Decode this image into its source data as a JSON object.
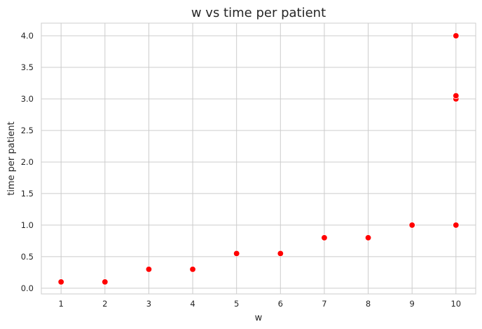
{
  "chart_data": {
    "type": "scatter",
    "title": "w vs time per patient",
    "xlabel": "w",
    "ylabel": "time per patient",
    "x_ticks": [
      1,
      2,
      3,
      4,
      5,
      6,
      7,
      8,
      9,
      10
    ],
    "y_ticks": [
      0.0,
      0.5,
      1.0,
      1.5,
      2.0,
      2.5,
      3.0,
      3.5,
      4.0
    ],
    "y_tick_labels": [
      "0.0",
      "0.5",
      "1.0",
      "1.5",
      "2.0",
      "2.5",
      "3.0",
      "3.5",
      "4.0"
    ],
    "xlim": [
      0.55,
      10.45
    ],
    "ylim": [
      -0.09,
      4.2
    ],
    "grid": true,
    "marker_color": "#ff0000",
    "points": [
      {
        "x": 1,
        "y": 0.1
      },
      {
        "x": 2,
        "y": 0.1
      },
      {
        "x": 3,
        "y": 0.3
      },
      {
        "x": 4,
        "y": 0.3
      },
      {
        "x": 5,
        "y": 0.55
      },
      {
        "x": 6,
        "y": 0.55
      },
      {
        "x": 7,
        "y": 0.8
      },
      {
        "x": 8,
        "y": 0.8
      },
      {
        "x": 9,
        "y": 1.0
      },
      {
        "x": 10,
        "y": 1.0
      },
      {
        "x": 10,
        "y": 3.0
      },
      {
        "x": 10,
        "y": 3.05
      },
      {
        "x": 10,
        "y": 4.0
      }
    ]
  }
}
